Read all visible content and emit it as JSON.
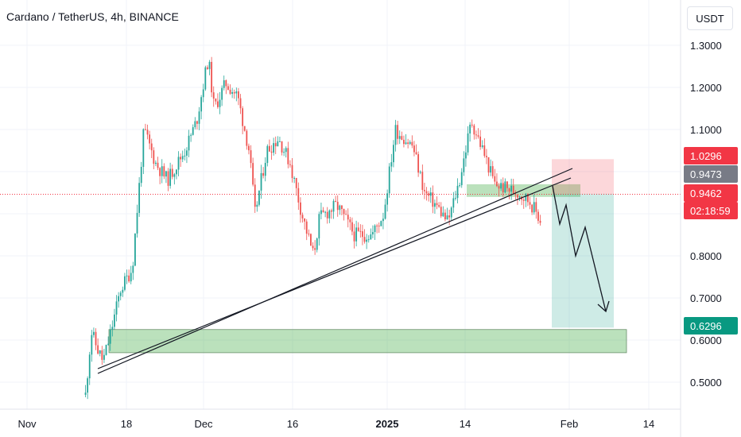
{
  "chart_data": {
    "type": "candlestick",
    "title": "Cardano / TetherUS, 4h, BINANCE",
    "currency": "USDT",
    "x_ticks": [
      "Nov",
      "18",
      "Dec",
      "16",
      "2025",
      "14",
      "Feb",
      "14"
    ],
    "y_ticks": [
      "1.3000",
      "1.2000",
      "1.1000",
      "0.8000",
      "0.7000",
      "0.6000",
      "0.5000"
    ],
    "y_tick_values": [
      1.3,
      1.2,
      1.1,
      0.8,
      0.7,
      0.6,
      0.5
    ],
    "ylim": [
      0.44,
      1.39
    ],
    "series": [
      {
        "type": "price-path",
        "dates": [
          "2024-11-11",
          "2024-11-12",
          "2024-11-13",
          "2024-11-14",
          "2024-11-15",
          "2024-11-17",
          "2024-11-19",
          "2024-11-21",
          "2024-11-23",
          "2024-11-25",
          "2024-11-28",
          "2024-11-30",
          "2024-12-02",
          "2024-12-03",
          "2024-12-05",
          "2024-12-07",
          "2024-12-09",
          "2024-12-10",
          "2024-12-12",
          "2024-12-14",
          "2024-12-16",
          "2024-12-18",
          "2024-12-20",
          "2024-12-21",
          "2024-12-24",
          "2024-12-27",
          "2024-12-30",
          "2025-01-01",
          "2025-01-03",
          "2025-01-06",
          "2025-01-08",
          "2025-01-10",
          "2025-01-12",
          "2025-01-14",
          "2025-01-16",
          "2025-01-18",
          "2025-01-20",
          "2025-01-22",
          "2025-01-24",
          "2025-01-26",
          "2025-01-28"
        ],
        "values": [
          0.47,
          0.62,
          0.58,
          0.55,
          0.6,
          0.72,
          0.77,
          1.1,
          1.02,
          0.98,
          1.05,
          1.12,
          1.27,
          1.15,
          1.21,
          1.18,
          1.05,
          0.9,
          1.05,
          1.08,
          1.02,
          0.9,
          0.8,
          0.89,
          0.92,
          0.85,
          0.85,
          0.9,
          1.1,
          1.06,
          0.95,
          0.92,
          0.88,
          0.98,
          1.12,
          1.05,
          0.97,
          0.96,
          0.95,
          0.93,
          0.88
        ]
      }
    ],
    "price_labels": [
      {
        "text": "1.0296",
        "value": 1.0296,
        "bg": "#f23645"
      },
      {
        "text": "0.9473",
        "value": 0.9473,
        "bg": "#787b86"
      },
      {
        "text": "0.9462",
        "value": 0.9462,
        "bg": "#f23645"
      },
      {
        "text": "02:18:59",
        "value": 0.9462,
        "bg": "#f23645"
      },
      {
        "text": "0.6296",
        "value": 0.6296,
        "bg": "#089981"
      }
    ],
    "last_price": 0.9462,
    "target_price": 0.6296,
    "stop_price": 1.0296,
    "entry_price": 0.9473,
    "demand_zone": [
      0.57,
      0.625
    ],
    "supply_zone": [
      0.94,
      0.97
    ],
    "colors": {
      "up": "#26a69a",
      "down": "#ef5350",
      "profit": "#089981",
      "loss": "#f23645",
      "zone": "#4caf50"
    }
  }
}
